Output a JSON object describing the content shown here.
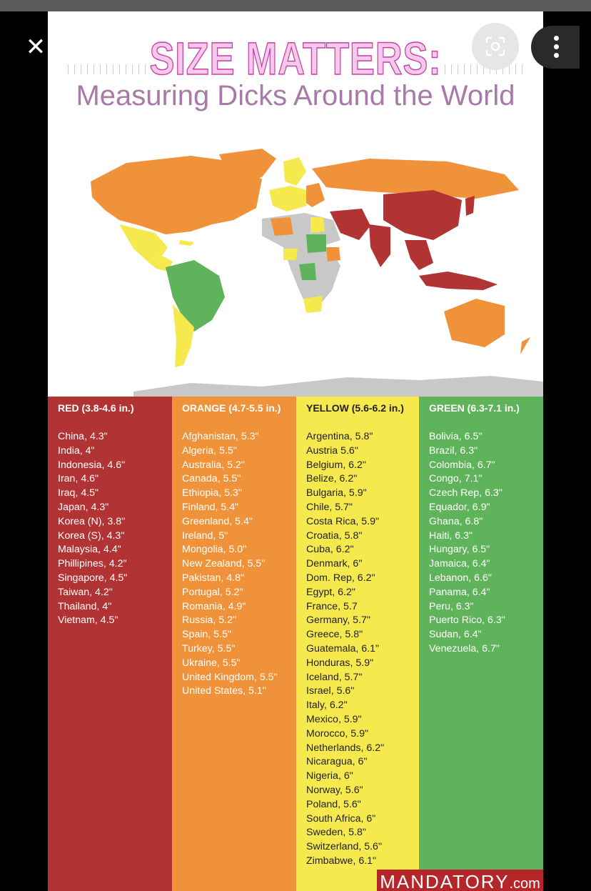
{
  "title": "SIZE MATTERS:",
  "subtitle": "Measuring Dicks Around the World",
  "watermark": {
    "brand": "MANDATORY",
    "tld": ".com"
  },
  "colors": {
    "red": "#b23334",
    "orange": "#f0923a",
    "yellow": "#f6e94e",
    "green": "#5fb35a"
  },
  "columns": [
    {
      "heading": "RED (3.8-4.6 in.)",
      "items": [
        "China, 4.3\"",
        "India, 4\"",
        "Indonesia, 4.6\"",
        "Iran, 4.6\"",
        "Iraq, 4.5\"",
        "Japan, 4.3\"",
        "Korea (N), 3.8\"",
        "Korea (S), 4.3\"",
        "Malaysia, 4.4\"",
        "Phillipines, 4.2\"",
        "Singapore, 4.5\"",
        "Taiwan, 4.2\"",
        "Thailand, 4\"",
        "Vietnam, 4.5\""
      ]
    },
    {
      "heading": "ORANGE (4.7-5.5 in.)",
      "items": [
        "Afghanistan, 5.3\"",
        "Algeria, 5.5\"",
        "Australia, 5.2\"",
        "Canada, 5.5\"",
        "Ethiopia, 5.3\"",
        "Finland, 5.4\"",
        "Greenland, 5.4\"",
        "Ireland, 5\"",
        "Mongolia, 5.0\"",
        "New Zealand, 5.5\"",
        "Pakistan, 4.8\"",
        "Portugal, 5.2\"",
        "Romania, 4.9\"",
        "Russia, 5.2\"",
        "Spain, 5.5\"",
        "Turkey, 5.5\"",
        "Ukraine, 5.5\"",
        "United Kingdom, 5.5\"",
        "United States, 5.1\""
      ]
    },
    {
      "heading": "YELLOW (5.6-6.2 in.)",
      "items": [
        "Argentina, 5.8\"",
        "Austria 5.6\"",
        "Belgium, 6.2\"",
        "Belize, 6.2\"",
        "Bulgaria, 5.9\"",
        "Chile, 5.7\"",
        "Costa Rica, 5.9\"",
        "Croatia, 5.8\"",
        "Cuba, 6.2\"",
        "Denmark, 6\"",
        "Dom. Rep, 6.2\"",
        "Egypt, 6.2\"",
        "France, 5.7",
        "Germany, 5.7\"",
        "Greece, 5.8\"",
        "Guatemala, 6.1\"",
        "Honduras, 5.9\"",
        "Iceland, 5.7\"",
        "Israel, 5.6\"",
        "Italy, 6.2\"",
        "Mexico, 5.9\"",
        "Morocco, 5.9\"",
        "Netherlands, 6.2\"",
        "Nicaragua, 6\"",
        "Nigeria, 6\"",
        "Norway, 5.6\"",
        "Poland, 5.6\"",
        "South Africa, 6\"",
        "Sweden, 5.8\"",
        "Switzerland, 5.6\"",
        "Zimbabwe, 6.1\""
      ]
    },
    {
      "heading": "GREEN (6.3-7.1 in.)",
      "items": [
        "Bolivia, 6.5\"",
        "Brazil, 6.3\"",
        "Colombia, 6.7\"",
        "Congo, 7.1\"",
        "Czech Rep, 6.3\"",
        "Equador, 6.9\"",
        "Ghana, 6.8\"",
        "Haiti, 6.3\"",
        "Hungary, 6.5\"",
        "Jamaica, 6.4\"",
        "Lebanon, 6.6\"",
        "Panama, 6.4\"",
        "Peru, 6.3\"",
        "Puerto Rico, 6.3\"",
        "Sudan, 6.4\"",
        "Venezuela, 6.7\""
      ]
    }
  ]
}
